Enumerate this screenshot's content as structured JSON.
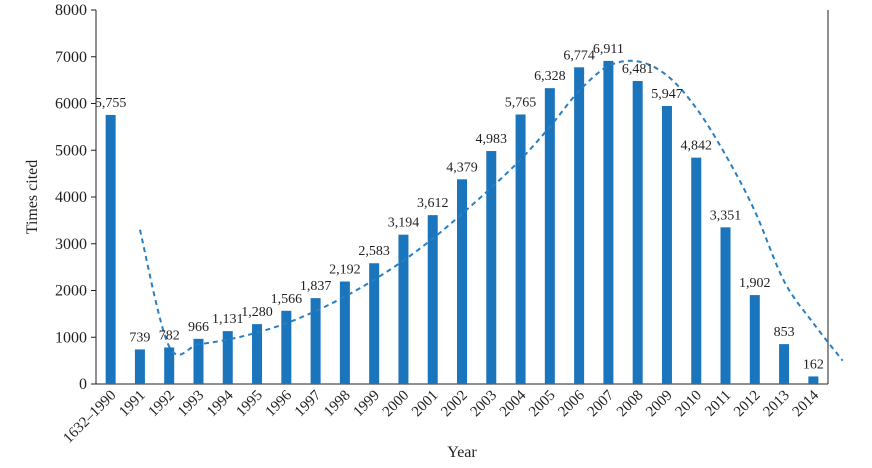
{
  "chart_data": {
    "type": "bar",
    "xlabel": "Year",
    "ylabel": "Times cited",
    "ylim": [
      0,
      8000
    ],
    "yticks": [
      0,
      1000,
      2000,
      3000,
      4000,
      5000,
      6000,
      7000,
      8000
    ],
    "categories": [
      "1632–1990",
      "1991",
      "1992",
      "1993",
      "1994",
      "1995",
      "1996",
      "1997",
      "1998",
      "1999",
      "2000",
      "2001",
      "2002",
      "2003",
      "2004",
      "2005",
      "2006",
      "2007",
      "2008",
      "2009",
      "2010",
      "2011",
      "2012",
      "2013",
      "2014"
    ],
    "values": [
      5755,
      739,
      782,
      966,
      1131,
      1280,
      1566,
      1837,
      2192,
      2583,
      3194,
      3612,
      4379,
      4983,
      5765,
      6328,
      6774,
      6911,
      6481,
      5947,
      4842,
      3351,
      1902,
      853,
      162
    ],
    "value_labels": [
      "5,755",
      "739",
      "782",
      "966",
      "1,131",
      "1,280",
      "1,566",
      "1,837",
      "2,192",
      "2,583",
      "3,194",
      "3,612",
      "4,379",
      "4,983",
      "5,765",
      "6,328",
      "6,774",
      "6,911",
      "6,481",
      "5,947",
      "4,842",
      "3,351",
      "1,902",
      "853",
      "162"
    ],
    "trendline": {
      "style": "dashed",
      "x_range": [
        "1991",
        "2014"
      ],
      "points": [
        [
          1,
          3300
        ],
        [
          2,
          800
        ],
        [
          3,
          850
        ],
        [
          4,
          950
        ],
        [
          5,
          1100
        ],
        [
          6,
          1300
        ],
        [
          7,
          1560
        ],
        [
          8,
          1870
        ],
        [
          9,
          2230
        ],
        [
          10,
          2640
        ],
        [
          11,
          3110
        ],
        [
          12,
          3640
        ],
        [
          13,
          4200
        ],
        [
          14,
          4800
        ],
        [
          15,
          5500
        ],
        [
          16,
          6270
        ],
        [
          17,
          6800
        ],
        [
          18,
          6900
        ],
        [
          19,
          6600
        ],
        [
          20,
          5900
        ],
        [
          21,
          4900
        ],
        [
          22,
          3700
        ],
        [
          23,
          2200
        ],
        [
          24,
          1300
        ],
        [
          25,
          500
        ]
      ]
    },
    "grid": false,
    "legend": "none",
    "bar_color": "#1b75bc",
    "trend_color": "#2a7fc1"
  }
}
